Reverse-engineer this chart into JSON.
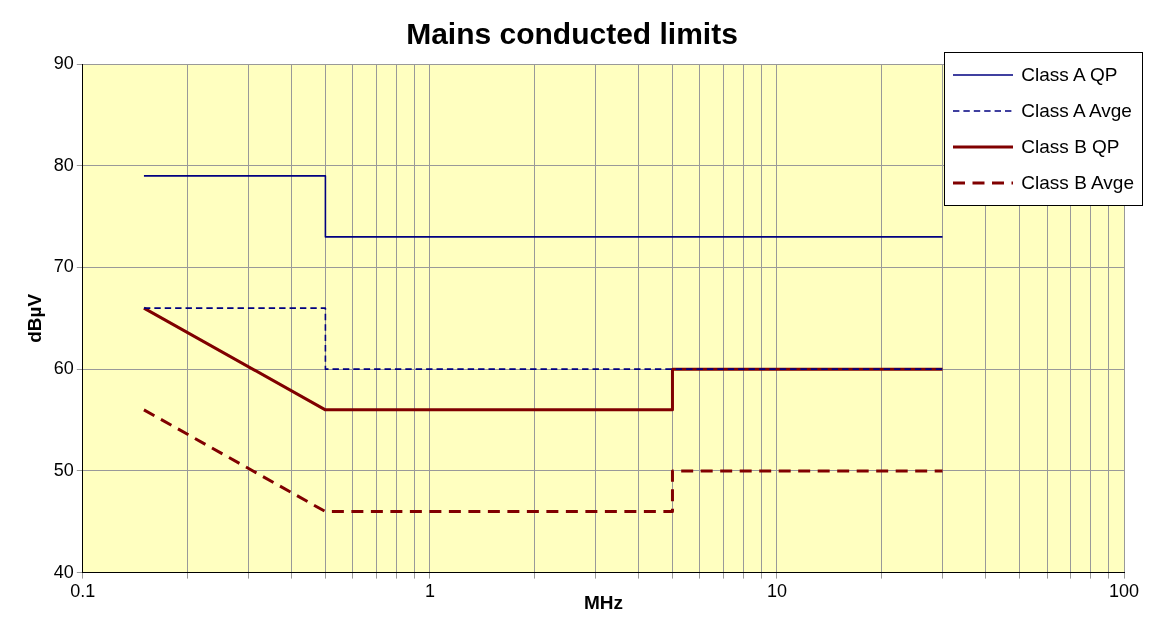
{
  "chart_data": {
    "type": "line",
    "title": "Mains conducted limits",
    "xlabel": "MHz",
    "ylabel": "dBµV",
    "log": "x",
    "xlim": [
      0.1,
      100
    ],
    "xticks": [
      0.1,
      {
        "value": 0.2,
        "label": null
      },
      {
        "value": 0.3,
        "label": null
      },
      {
        "value": 0.4,
        "label": null
      },
      {
        "value": 0.5,
        "label": null
      },
      {
        "value": 0.6,
        "label": null
      },
      {
        "value": 0.7,
        "label": null
      },
      {
        "value": 0.8,
        "label": null
      },
      {
        "value": 0.9,
        "label": null
      },
      1,
      {
        "value": 2,
        "label": null
      },
      {
        "value": 3,
        "label": null
      },
      {
        "value": 4,
        "label": null
      },
      {
        "value": 5,
        "label": null
      },
      {
        "value": 6,
        "label": null
      },
      {
        "value": 7,
        "label": null
      },
      {
        "value": 8,
        "label": null
      },
      {
        "value": 9,
        "label": null
      },
      10,
      {
        "value": 20,
        "label": null
      },
      {
        "value": 30,
        "label": null
      },
      {
        "value": 40,
        "label": null
      },
      {
        "value": 50,
        "label": null
      },
      {
        "value": 60,
        "label": null
      },
      {
        "value": 70,
        "label": null
      },
      {
        "value": 80,
        "label": null
      },
      {
        "value": 90,
        "label": null
      },
      100
    ],
    "ylim": [
      40,
      90
    ],
    "yticks": [
      40,
      50,
      60,
      70,
      80,
      90
    ],
    "grid": true,
    "legend": "top right",
    "marker": "none",
    "series": [
      {
        "name": "Class A QP",
        "color": "#000080",
        "line_style": "solid",
        "x": [
          0.15,
          0.5,
          0.5,
          30
        ],
        "values": [
          79,
          79,
          73,
          73
        ]
      },
      {
        "name": "Class A Avge",
        "color": "#000080",
        "line_style": "dashed",
        "x": [
          0.15,
          0.5,
          0.5,
          30
        ],
        "values": [
          66,
          66,
          60,
          60
        ]
      },
      {
        "name": "Class B QP",
        "color": "#800000",
        "line_style": "solid",
        "x": [
          0.15,
          0.5,
          5,
          5,
          30
        ],
        "values": [
          66,
          56,
          56,
          60,
          60
        ]
      },
      {
        "name": "Class B Avge",
        "color": "#800000",
        "line_style": "dashed",
        "x": [
          0.15,
          0.5,
          5,
          5,
          30
        ],
        "values": [
          56,
          46,
          46,
          50,
          50
        ]
      }
    ]
  }
}
